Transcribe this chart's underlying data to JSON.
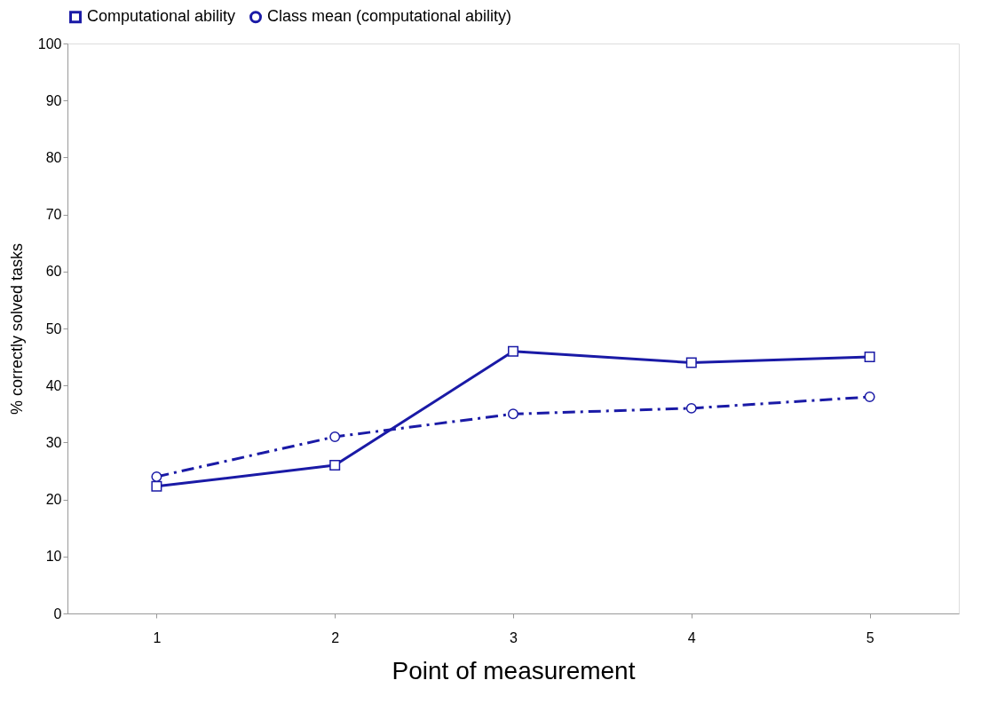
{
  "chart_data": {
    "type": "line",
    "xlabel": "Point of measurement",
    "ylabel": "% correctly solved tasks",
    "categories": [
      "1",
      "2",
      "3",
      "4",
      "5"
    ],
    "series": [
      {
        "name": "Computational ability",
        "color": "#1a1aa6",
        "values": [
          22.3,
          26,
          46,
          44,
          45
        ],
        "marker": "square",
        "line_style": "solid"
      },
      {
        "name": "Class mean (computational ability)",
        "color": "#1a1aa6",
        "values": [
          24,
          31,
          35,
          36,
          38
        ],
        "marker": "circle",
        "line_style": "dashed"
      }
    ],
    "ylim": [
      0,
      100
    ],
    "yticks": [
      0,
      10,
      20,
      30,
      40,
      50,
      60,
      70,
      80,
      90,
      100
    ],
    "grid": false,
    "legend": "top"
  }
}
